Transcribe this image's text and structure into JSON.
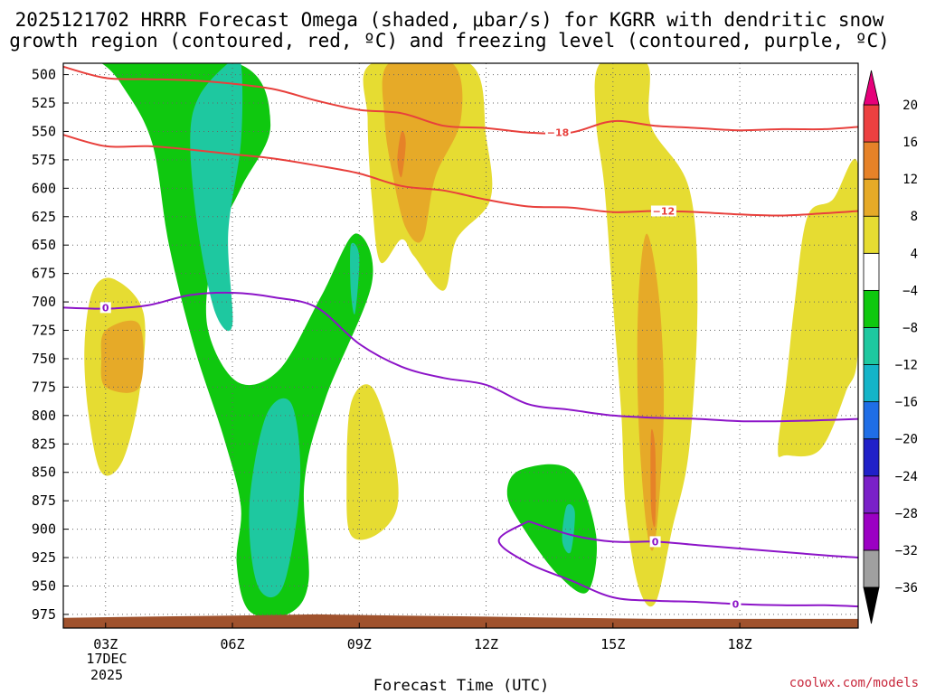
{
  "chart_data": {
    "type": "time-height cross-section (shaded omega with contours)",
    "title_line1": "2025121702 HRRR Forecast Omega (shaded, μbar/s) for KGRR with dendritic snow",
    "title_line2": "growth region (contoured, red, ºC) and freezing level (contoured, purple, ºC)",
    "xlabel": "Forecast Time (UTC)",
    "ylabel": "",
    "xlim": [
      2,
      20.8
    ],
    "ylim": [
      987,
      490
    ],
    "x_ticks": [
      3,
      6,
      9,
      12,
      15,
      18
    ],
    "x_tick_labels": [
      "03Z",
      "06Z",
      "09Z",
      "12Z",
      "15Z",
      "18Z"
    ],
    "x_sublabels": [
      "17DEC",
      "2025"
    ],
    "y_ticks": [
      500,
      525,
      550,
      575,
      600,
      625,
      650,
      675,
      700,
      725,
      750,
      775,
      800,
      825,
      850,
      875,
      900,
      925,
      950,
      975
    ],
    "y_tick_labels": [
      "500",
      "525",
      "550",
      "575",
      "600",
      "625",
      "650",
      "675",
      "700",
      "725",
      "750",
      "775",
      "800",
      "825",
      "850",
      "875",
      "900",
      "925",
      "950",
      "975"
    ],
    "colorbar": {
      "levels": [
        -36,
        -32,
        -28,
        -24,
        -20,
        -16,
        -12,
        -8,
        -4,
        4,
        8,
        12,
        16,
        20
      ],
      "level_labels": [
        "20",
        "16",
        "12",
        "8",
        "4",
        "−4",
        "−8",
        "−12",
        "−16",
        "−20",
        "−24",
        "−28",
        "−32",
        "−36"
      ],
      "colors": [
        "#000000",
        "#a0a0a0",
        "#9b00c3",
        "#7a20c8",
        "#2020c8",
        "#1f6ee6",
        "#14b4c8",
        "#1ec8a0",
        "#0fc80f",
        "#ffffff",
        "#e6dc32",
        "#e6aa28",
        "#e68228",
        "#ec4040",
        "#e6007a"
      ]
    },
    "filled_regions": [
      {
        "class": "-8 to -4",
        "color": "#0fc80f",
        "points": [
          [
            2.5,
            490
          ],
          [
            6.1,
            490
          ],
          [
            6.9,
            544
          ],
          [
            6.2,
            600
          ],
          [
            5.6,
            650
          ],
          [
            5.4,
            720
          ],
          [
            6.1,
            770
          ],
          [
            7.1,
            760
          ],
          [
            8.1,
            695
          ],
          [
            8.9,
            640
          ],
          [
            9.3,
            683
          ],
          [
            8.2,
            785
          ],
          [
            7.7,
            860
          ],
          [
            7.8,
            946
          ],
          [
            7.3,
            975
          ],
          [
            6.4,
            972
          ],
          [
            6.1,
            930
          ],
          [
            6.2,
            880
          ],
          [
            5.8,
            820
          ],
          [
            5.1,
            740
          ],
          [
            4.5,
            650
          ],
          [
            4.1,
            560
          ],
          [
            3.4,
            510
          ],
          [
            2.9,
            490
          ]
        ]
      },
      {
        "class": "-12 to -8",
        "color": "#1ec8a0",
        "points": [
          [
            5.9,
            490
          ],
          [
            6.2,
            490
          ],
          [
            6.2,
            560
          ],
          [
            5.9,
            640
          ],
          [
            6.0,
            720
          ],
          [
            5.6,
            710
          ],
          [
            5.2,
            640
          ],
          [
            5.0,
            560
          ],
          [
            5.2,
            520
          ]
        ]
      },
      {
        "class": "-12 to -8",
        "color": "#1ec8a0",
        "points": [
          [
            6.8,
            800
          ],
          [
            7.4,
            790
          ],
          [
            7.6,
            860
          ],
          [
            7.2,
            950
          ],
          [
            6.6,
            950
          ],
          [
            6.4,
            880
          ]
        ]
      },
      {
        "class": "-12 to -8",
        "color": "#1ec8a0",
        "points": [
          [
            8.8,
            650
          ],
          [
            9.0,
            660
          ],
          [
            8.9,
            710
          ],
          [
            8.8,
            690
          ]
        ]
      },
      {
        "class": "-8 to -4",
        "color": "#0fc80f",
        "points": [
          [
            12.8,
            848
          ],
          [
            14.0,
            848
          ],
          [
            14.6,
            905
          ],
          [
            14.4,
            955
          ],
          [
            13.7,
            940
          ],
          [
            12.9,
            900
          ],
          [
            12.5,
            870
          ]
        ]
      },
      {
        "class": "-12 to -8",
        "color": "#1ec8a0",
        "points": [
          [
            13.9,
            880
          ],
          [
            14.1,
            885
          ],
          [
            14.0,
            920
          ],
          [
            13.8,
            910
          ]
        ]
      },
      {
        "class": "4 to 8",
        "color": "#e6dc32",
        "points": [
          [
            9.3,
            490
          ],
          [
            11.6,
            490
          ],
          [
            12.0,
            555
          ],
          [
            12.1,
            610
          ],
          [
            11.3,
            645
          ],
          [
            11.0,
            690
          ],
          [
            10.3,
            660
          ],
          [
            10.0,
            645
          ],
          [
            9.5,
            665
          ],
          [
            9.3,
            610
          ],
          [
            9.2,
            540
          ]
        ]
      },
      {
        "class": "8 to 12",
        "color": "#e6aa28",
        "points": [
          [
            9.7,
            490
          ],
          [
            11.2,
            490
          ],
          [
            11.4,
            540
          ],
          [
            10.8,
            590
          ],
          [
            10.5,
            645
          ],
          [
            10.1,
            635
          ],
          [
            9.8,
            590
          ],
          [
            9.6,
            540
          ]
        ]
      },
      {
        "class": "12 to 16",
        "color": "#e68228",
        "points": [
          [
            10.0,
            550
          ],
          [
            10.1,
            560
          ],
          [
            10.0,
            590
          ],
          [
            9.9,
            575
          ]
        ]
      },
      {
        "class": "4 to 8",
        "color": "#e6dc32",
        "points": [
          [
            2.7,
            690
          ],
          [
            3.2,
            680
          ],
          [
            3.9,
            710
          ],
          [
            3.8,
            780
          ],
          [
            3.4,
            840
          ],
          [
            2.9,
            850
          ],
          [
            2.6,
            800
          ],
          [
            2.5,
            740
          ]
        ]
      },
      {
        "class": "8 to 12",
        "color": "#e6aa28",
        "points": [
          [
            3.0,
            725
          ],
          [
            3.8,
            720
          ],
          [
            3.8,
            775
          ],
          [
            3.0,
            775
          ],
          [
            2.9,
            750
          ]
        ]
      },
      {
        "class": "4 to 8",
        "color": "#e6dc32",
        "points": [
          [
            8.8,
            790
          ],
          [
            9.3,
            775
          ],
          [
            9.8,
            830
          ],
          [
            9.9,
            880
          ],
          [
            9.4,
            905
          ],
          [
            8.8,
            905
          ],
          [
            8.7,
            860
          ]
        ]
      },
      {
        "class": "4 to 8",
        "color": "#e6dc32",
        "points": [
          [
            14.7,
            490
          ],
          [
            15.8,
            490
          ],
          [
            15.9,
            545
          ],
          [
            16.8,
            600
          ],
          [
            17.0,
            700
          ],
          [
            16.8,
            830
          ],
          [
            16.4,
            900
          ],
          [
            16.0,
            965
          ],
          [
            15.6,
            950
          ],
          [
            15.3,
            880
          ],
          [
            15.2,
            800
          ],
          [
            15.0,
            700
          ],
          [
            14.8,
            600
          ],
          [
            14.6,
            540
          ]
        ]
      },
      {
        "class": "8 to 12",
        "color": "#e6aa28",
        "points": [
          [
            15.8,
            640
          ],
          [
            16.1,
            700
          ],
          [
            16.2,
            800
          ],
          [
            16.0,
            910
          ],
          [
            15.8,
            900
          ],
          [
            15.6,
            800
          ],
          [
            15.6,
            700
          ]
        ]
      },
      {
        "class": "12 to 16",
        "color": "#e68228",
        "points": [
          [
            15.9,
            815
          ],
          [
            16.0,
            830
          ],
          [
            16.0,
            895
          ],
          [
            15.9,
            880
          ]
        ]
      },
      {
        "class": "4 to 8",
        "color": "#e6dc32",
        "points": [
          [
            20.8,
            580
          ],
          [
            20.8,
            740
          ],
          [
            20.5,
            780
          ],
          [
            19.9,
            830
          ],
          [
            19.1,
            835
          ],
          [
            18.9,
            830
          ],
          [
            19.1,
            770
          ],
          [
            19.3,
            700
          ],
          [
            19.6,
            625
          ],
          [
            20.2,
            610
          ]
        ]
      }
    ],
    "contours": [
      {
        "name": "dgz-warm-edge",
        "kind": "dendritic snow growth",
        "color": "#e8403c",
        "label": "−12",
        "label_at": [
          16.2,
          620
        ],
        "points": [
          [
            2,
            553
          ],
          [
            3,
            563
          ],
          [
            4,
            563
          ],
          [
            5,
            566
          ],
          [
            6,
            570
          ],
          [
            7,
            574
          ],
          [
            8,
            580
          ],
          [
            9,
            587
          ],
          [
            10,
            598
          ],
          [
            11,
            602
          ],
          [
            12,
            610
          ],
          [
            13,
            616
          ],
          [
            14,
            617
          ],
          [
            15,
            621
          ],
          [
            16,
            620
          ],
          [
            17,
            621
          ],
          [
            18,
            623
          ],
          [
            19,
            624
          ],
          [
            20,
            622
          ],
          [
            20.8,
            620
          ]
        ]
      },
      {
        "name": "dgz-cold-edge",
        "kind": "dendritic snow growth",
        "color": "#e8403c",
        "label": "−18",
        "label_at": [
          13.7,
          551
        ],
        "points": [
          [
            2,
            493
          ],
          [
            3,
            503
          ],
          [
            4,
            504
          ],
          [
            5,
            505
          ],
          [
            6,
            508
          ],
          [
            7,
            513
          ],
          [
            8,
            523
          ],
          [
            9,
            531
          ],
          [
            10,
            534
          ],
          [
            11,
            545
          ],
          [
            12,
            547
          ],
          [
            13,
            551
          ],
          [
            14,
            551
          ],
          [
            15,
            541
          ],
          [
            16,
            545
          ],
          [
            17,
            547
          ],
          [
            18,
            549
          ],
          [
            19,
            548
          ],
          [
            20,
            548
          ],
          [
            20.8,
            546
          ]
        ]
      },
      {
        "name": "freezing-level",
        "kind": "freezing level",
        "color": "#8c14c8",
        "label": "0",
        "label_at": [
          3.0,
          705
        ],
        "points": [
          [
            2,
            705
          ],
          [
            3,
            706
          ],
          [
            4,
            703
          ],
          [
            5,
            694
          ],
          [
            6,
            692
          ],
          [
            7,
            696
          ],
          [
            8,
            705
          ],
          [
            9,
            737
          ],
          [
            10,
            757
          ],
          [
            11,
            767
          ],
          [
            12,
            773
          ],
          [
            13,
            790
          ],
          [
            14,
            795
          ],
          [
            15,
            800
          ],
          [
            16,
            802
          ],
          [
            17,
            803
          ],
          [
            18,
            805
          ],
          [
            19,
            805
          ],
          [
            20,
            804
          ],
          [
            20.8,
            803
          ]
        ]
      },
      {
        "name": "freezing-level-lower",
        "kind": "freezing level",
        "color": "#8c14c8",
        "label": "0",
        "label_at": [
          16.0,
          911
        ],
        "points": [
          [
            13,
            893
          ],
          [
            14,
            905
          ],
          [
            15,
            911
          ],
          [
            16,
            911
          ],
          [
            17,
            914
          ],
          [
            18,
            917
          ],
          [
            19,
            920
          ],
          [
            20,
            923
          ],
          [
            20.8,
            925
          ]
        ]
      },
      {
        "name": "freezing-level-bottom",
        "kind": "freezing level",
        "color": "#8c14c8",
        "label": "0",
        "label_at": [
          17.9,
          966
        ],
        "points": [
          [
            13,
            893
          ],
          [
            12.3,
            910
          ],
          [
            13,
            930
          ],
          [
            14,
            945
          ],
          [
            15,
            960
          ],
          [
            16,
            963
          ],
          [
            17,
            964
          ],
          [
            18,
            966
          ],
          [
            19,
            967
          ],
          [
            20,
            967
          ],
          [
            20.8,
            968
          ]
        ]
      }
    ],
    "terrain": {
      "color": "#a0522d",
      "surface_pressure": [
        [
          2,
          978
        ],
        [
          4,
          977
        ],
        [
          6,
          976
        ],
        [
          8,
          975
        ],
        [
          10,
          976
        ],
        [
          12,
          977
        ],
        [
          14,
          978
        ],
        [
          16,
          979
        ],
        [
          18,
          979
        ],
        [
          20,
          979
        ],
        [
          20.8,
          979
        ]
      ]
    }
  },
  "credit": "coolwx.com/models"
}
